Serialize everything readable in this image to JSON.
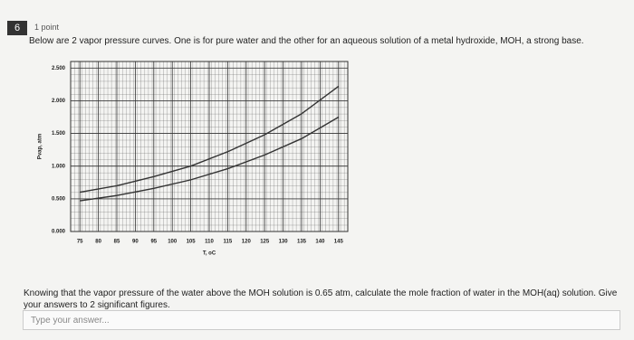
{
  "question_number": "6",
  "points": "1 point",
  "prompt": "Below are 2 vapor pressure curves. One is for pure water and the other for an aqueous solution of a metal hydroxide, MOH, a strong base.",
  "chart_data": {
    "type": "line",
    "x_label": "T, oC",
    "y_label": "Pvap, atm",
    "x": [
      75,
      85,
      95,
      105,
      115,
      125,
      135,
      145
    ],
    "series": [
      {
        "color": "#333333",
        "values": [
          0.6,
          0.7,
          0.84,
          1.0,
          1.22,
          1.48,
          1.8,
          2.22
        ]
      },
      {
        "color": "#333333",
        "values": [
          0.47,
          0.55,
          0.66,
          0.79,
          0.96,
          1.17,
          1.42,
          1.75
        ]
      }
    ],
    "xlim": [
      72.5,
      147.5
    ],
    "ylim": [
      0,
      2.6
    ],
    "xticks": [
      75,
      80,
      85,
      90,
      95,
      100,
      105,
      110,
      115,
      120,
      125,
      130,
      135,
      140,
      145
    ],
    "yticks": [
      {
        "value": 0,
        "label": "0.000"
      },
      {
        "value": 0.5,
        "label": "0.500"
      },
      {
        "value": 1,
        "label": "1.000"
      },
      {
        "value": 1.5,
        "label": "1.500"
      },
      {
        "value": 2,
        "label": "2.000"
      },
      {
        "value": 2.5,
        "label": "2.500"
      }
    ],
    "grid": true
  },
  "followup": "Knowing that the vapor pressure of the water above the MOH solution is 0.65 atm, calculate the mole fraction of water in the MOH(aq) solution. Give your answers to 2 significant figures.",
  "answer_placeholder": "Type your answer..."
}
